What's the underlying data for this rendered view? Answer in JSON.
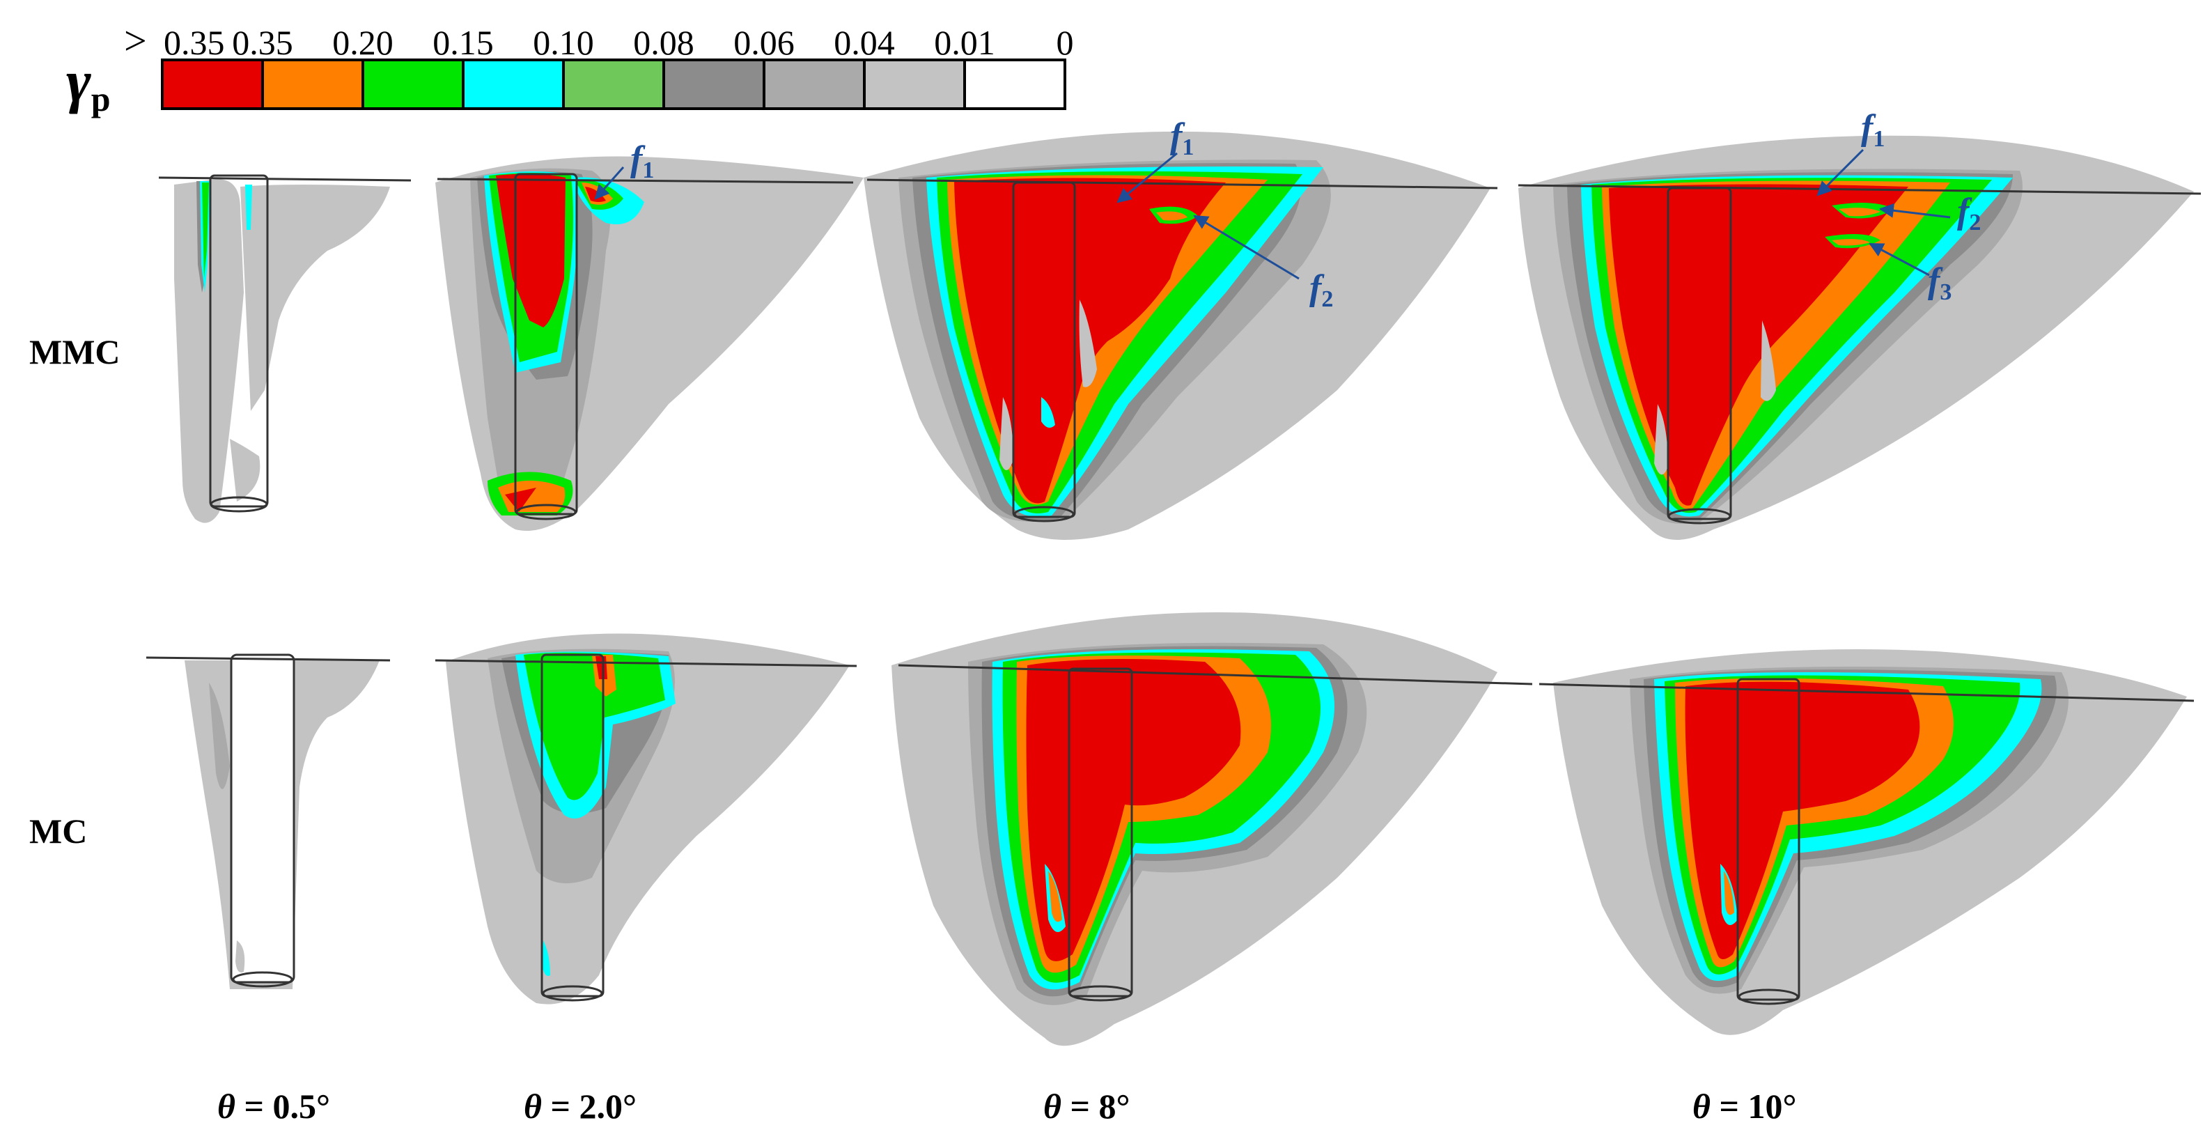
{
  "legend": {
    "symbol_main": "γ",
    "symbol_sub": "p",
    "gt_sign": ">",
    "tick_labels": [
      "0.35",
      "0.35",
      "0.20",
      "0.15",
      "0.10",
      "0.08",
      "0.06",
      "0.04",
      "0.01",
      "0"
    ],
    "colors": [
      "#e60000",
      "#ff8000",
      "#00e600",
      "#00ffff",
      "#6ec85a",
      "#8c8c8c",
      "#aaaaaa",
      "#c3c3c3",
      "#ffffff"
    ]
  },
  "rows": [
    "MMC",
    "MC"
  ],
  "columns": [
    {
      "symbol": "θ",
      "value": " = 0.5°"
    },
    {
      "symbol": "θ",
      "value": " = 2.0°"
    },
    {
      "symbol": "θ",
      "value": " = 8°"
    },
    {
      "symbol": "θ",
      "value": " = 10°"
    }
  ],
  "annotations": {
    "f1_col2": {
      "letter": "f",
      "sub": "1"
    },
    "f1_col3": {
      "letter": "f",
      "sub": "1"
    },
    "f2_col3": {
      "letter": "f",
      "sub": "2"
    },
    "f1_col4": {
      "letter": "f",
      "sub": "1"
    },
    "f2_col4": {
      "letter": "f",
      "sub": "2"
    },
    "f3_col4": {
      "letter": "f",
      "sub": "3"
    }
  },
  "theme": {
    "text_color": "#000000",
    "annotation_color": "#1f4e99",
    "pile_outline": "#333333"
  }
}
